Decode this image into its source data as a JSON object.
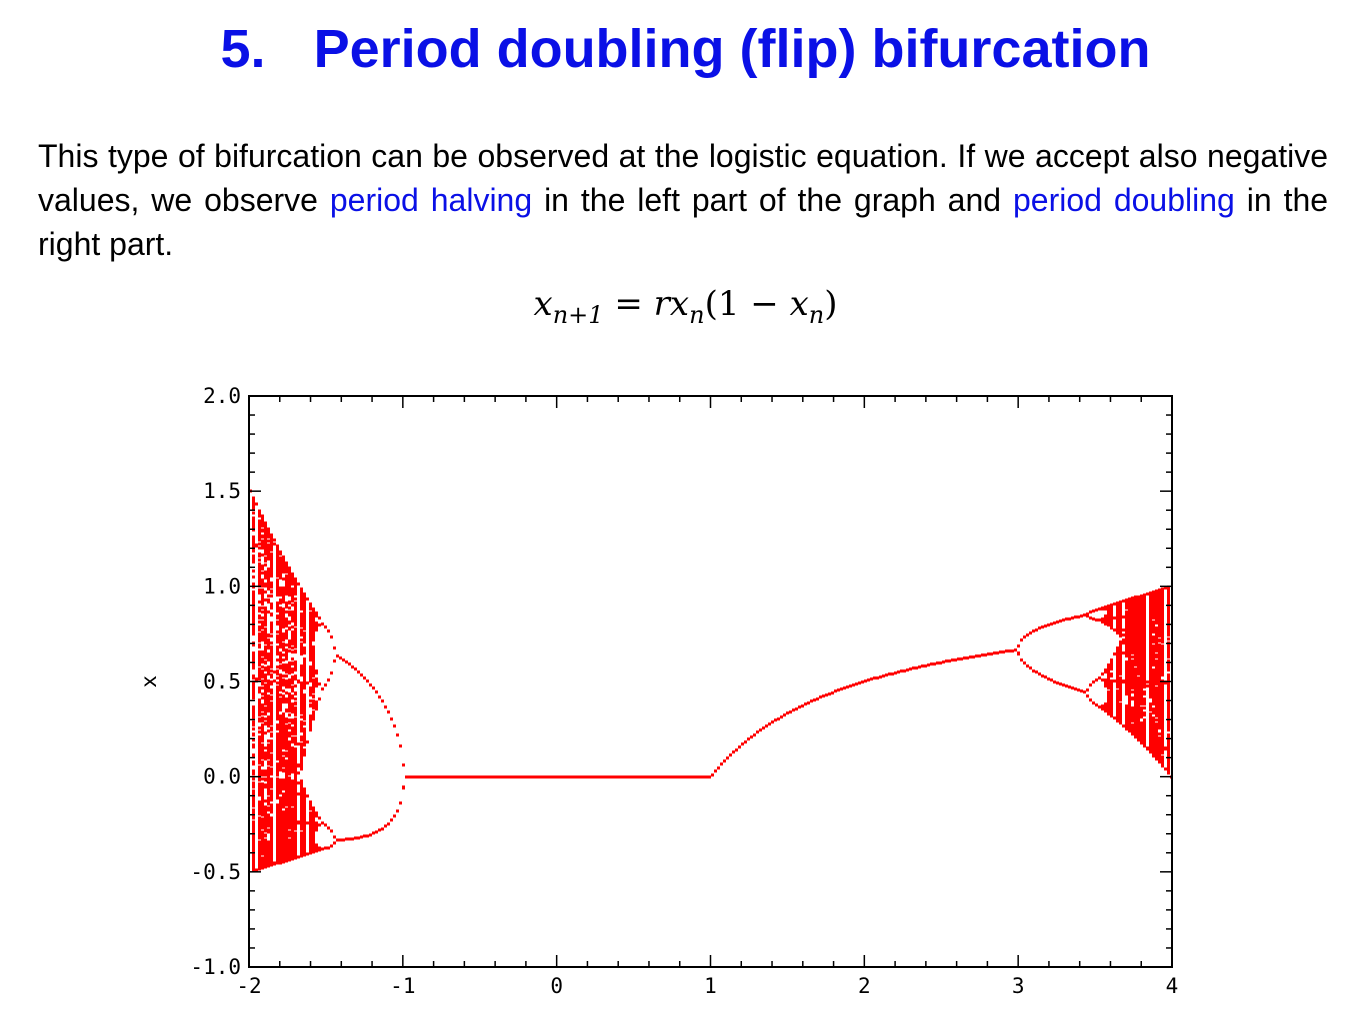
{
  "slide": {
    "title_number": "5.",
    "title_text": "Period doubling (flip) bifurcation",
    "paragraph_part1": "This type of bifurcation can be observed at the logistic equation. If we accept also negative values, we observe ",
    "link1": "period halving",
    "paragraph_part2": " in the left part of the graph and ",
    "link2": "period doubling",
    "paragraph_part3": " in the right part.",
    "equation": {
      "lhs_var": "x",
      "lhs_sub": "n+1",
      "eq": " = ",
      "rhs_r": "r",
      "rhs_x": "x",
      "rhs_sub": "n",
      "rhs_open": "(1 − ",
      "rhs_x2": "x",
      "rhs_sub2": "n",
      "rhs_close": ")"
    },
    "link_color": "#0a10e6"
  },
  "chart_data": {
    "type": "scatter",
    "title": "",
    "xlabel": "",
    "ylabel": "x",
    "xlim": [
      -2,
      4
    ],
    "ylim": [
      -1.0,
      2.0
    ],
    "xticks": [
      -2,
      -1,
      0,
      1,
      2,
      3,
      4
    ],
    "xtick_labels": [
      "-2",
      "-1",
      "0",
      "1",
      "2",
      "3",
      "4"
    ],
    "yticks": [
      2.0,
      1.5,
      1.0,
      0.5,
      0.0,
      -0.5,
      -1.0
    ],
    "ytick_labels": [
      "2.0",
      "1.5",
      "1.0",
      "0.5",
      "0.0",
      "-0.5",
      "-1.0"
    ],
    "grid": false,
    "legend": "none",
    "series": [
      {
        "color": "#ff0000",
        "map": "x_{n+1} = r x_n (1 - x_n)",
        "r_range": [
          -2,
          4
        ],
        "attractor_points_per_r": 64
      }
    ]
  }
}
